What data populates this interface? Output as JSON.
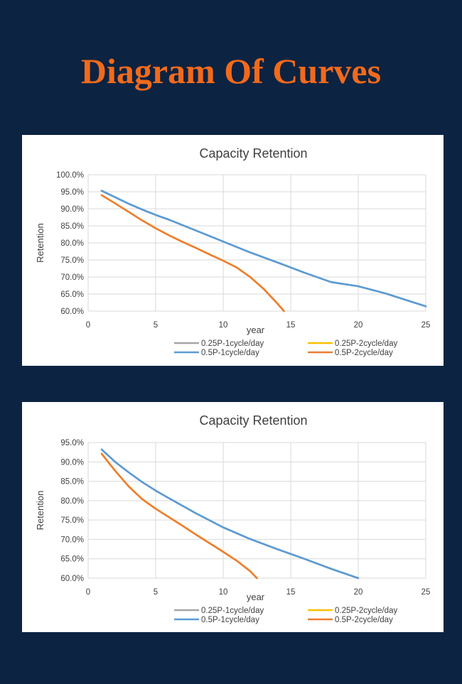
{
  "page": {
    "title": "Diagram Of Curves"
  },
  "chart_data": [
    {
      "type": "line",
      "title": "Capacity Retention",
      "xlabel": "year",
      "ylabel": "Retention",
      "xlim": [
        0,
        25
      ],
      "ylim": [
        0.6,
        1.0
      ],
      "x_ticks": [
        0,
        5,
        10,
        15,
        20,
        25
      ],
      "x_tick_labels": [
        "0",
        "5",
        "10",
        "15",
        "20",
        "25"
      ],
      "y_ticks": [
        0.6,
        0.65,
        0.7,
        0.75,
        0.8,
        0.85,
        0.9,
        0.95,
        1.0
      ],
      "y_tick_labels": [
        "60.0%",
        "65.0%",
        "70.0%",
        "75.0%",
        "80.0%",
        "85.0%",
        "90.0%",
        "95.0%",
        "100.0%"
      ],
      "grid": true,
      "legend_position": "bottom",
      "series": [
        {
          "name": "0.25P-1cycle/day",
          "color": "#a5a5a5",
          "x": [
            1,
            2,
            3,
            4,
            5,
            6,
            8,
            10,
            12,
            14,
            16,
            18,
            20,
            22,
            25
          ],
          "y": [
            0.953,
            0.934,
            0.915,
            0.898,
            0.882,
            0.868,
            0.836,
            0.804,
            0.772,
            0.743,
            0.713,
            0.685,
            0.673,
            0.652,
            0.614
          ]
        },
        {
          "name": "0.25P-2cycle/day",
          "color": "#ffc000",
          "x": [
            1,
            2,
            3,
            4,
            5,
            6,
            7,
            8,
            9,
            10,
            11,
            12,
            13,
            14,
            14.5
          ],
          "y": [
            0.94,
            0.916,
            0.891,
            0.866,
            0.843,
            0.822,
            0.803,
            0.785,
            0.766,
            0.748,
            0.728,
            0.7,
            0.665,
            0.623,
            0.6
          ]
        },
        {
          "name": "0.5P-1cycle/day",
          "color": "#5b9bd5",
          "x": [
            1,
            2,
            3,
            4,
            5,
            6,
            8,
            10,
            12,
            14,
            16,
            18,
            20,
            22,
            25
          ],
          "y": [
            0.953,
            0.934,
            0.915,
            0.898,
            0.882,
            0.868,
            0.836,
            0.804,
            0.772,
            0.743,
            0.713,
            0.685,
            0.673,
            0.652,
            0.614
          ]
        },
        {
          "name": "0.5P-2cycle/day",
          "color": "#ed7d31",
          "x": [
            1,
            2,
            3,
            4,
            5,
            6,
            7,
            8,
            9,
            10,
            11,
            12,
            13,
            14,
            14.5
          ],
          "y": [
            0.94,
            0.916,
            0.891,
            0.866,
            0.843,
            0.822,
            0.803,
            0.785,
            0.766,
            0.748,
            0.728,
            0.7,
            0.665,
            0.623,
            0.6
          ]
        }
      ]
    },
    {
      "type": "line",
      "title": "Capacity Retention",
      "xlabel": "year",
      "ylabel": "Retention",
      "xlim": [
        0,
        25
      ],
      "ylim": [
        0.6,
        0.95
      ],
      "x_ticks": [
        0,
        5,
        10,
        15,
        20,
        25
      ],
      "x_tick_labels": [
        "0",
        "5",
        "10",
        "15",
        "20",
        "25"
      ],
      "y_ticks": [
        0.6,
        0.65,
        0.7,
        0.75,
        0.8,
        0.85,
        0.9,
        0.95
      ],
      "y_tick_labels": [
        "60.0%",
        "65.0%",
        "70.0%",
        "75.0%",
        "80.0%",
        "85.0%",
        "90.0%",
        "95.0%"
      ],
      "grid": true,
      "legend_position": "bottom",
      "series": [
        {
          "name": "0.25P-1cycle/day",
          "color": "#a5a5a5",
          "x": [
            1,
            2,
            3,
            4,
            5,
            6,
            8,
            10,
            12,
            14,
            16,
            18,
            20
          ],
          "y": [
            0.932,
            0.9,
            0.873,
            0.848,
            0.826,
            0.806,
            0.767,
            0.731,
            0.701,
            0.675,
            0.65,
            0.624,
            0.6
          ]
        },
        {
          "name": "0.25P-2cycle/day",
          "color": "#ffc000",
          "x": [
            1,
            2,
            3,
            4,
            5,
            6,
            7,
            8,
            9,
            10,
            11,
            12,
            12.5
          ],
          "y": [
            0.921,
            0.877,
            0.837,
            0.804,
            0.779,
            0.757,
            0.735,
            0.712,
            0.69,
            0.668,
            0.645,
            0.618,
            0.6
          ]
        },
        {
          "name": "0.5P-1cycle/day",
          "color": "#5b9bd5",
          "x": [
            1,
            2,
            3,
            4,
            5,
            6,
            8,
            10,
            12,
            14,
            16,
            18,
            20
          ],
          "y": [
            0.932,
            0.9,
            0.873,
            0.848,
            0.826,
            0.806,
            0.767,
            0.731,
            0.701,
            0.675,
            0.65,
            0.624,
            0.6
          ]
        },
        {
          "name": "0.5P-2cycle/day",
          "color": "#ed7d31",
          "x": [
            1,
            2,
            3,
            4,
            5,
            6,
            7,
            8,
            9,
            10,
            11,
            12,
            12.5
          ],
          "y": [
            0.921,
            0.877,
            0.837,
            0.804,
            0.779,
            0.757,
            0.735,
            0.712,
            0.69,
            0.668,
            0.645,
            0.618,
            0.6
          ]
        }
      ]
    }
  ]
}
